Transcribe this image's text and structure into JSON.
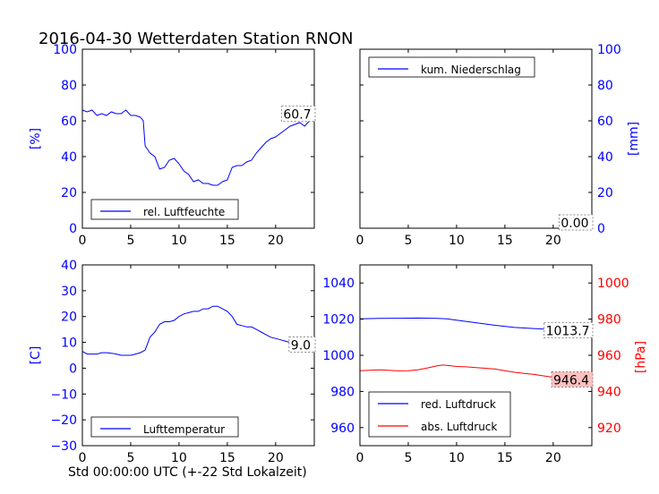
{
  "figure": {
    "title": "2016-04-30 Wetterdaten Station RNON",
    "xlabel": "Std 00:00:00 UTC (+-22 Std Lokalzeit)"
  },
  "colors": {
    "left_axis": "#0000ff",
    "right_axis_pressure": "#ff0000",
    "blue_series": "#0000ff",
    "red_series": "#ff0000",
    "value_box_fill": "#ffffff",
    "value_box_fill_red": "#ffc0c0"
  },
  "chart_data": [
    {
      "id": "humidity",
      "type": "line",
      "ylabel": "[%]",
      "xlim": [
        0,
        24
      ],
      "ylim": [
        0,
        100
      ],
      "x_ticks": [
        "0",
        "5",
        "10",
        "15",
        "20"
      ],
      "y_ticks": [
        "0",
        "20",
        "40",
        "60",
        "80",
        "100"
      ],
      "legend": {
        "placement": "lower-left",
        "entries": [
          "rel. Luftfeuchte"
        ]
      },
      "last_value_label": "60.7",
      "series": [
        {
          "name": "rel. Luftfeuchte",
          "color": "#0000ff",
          "x": [
            0,
            0.5,
            1,
            1.5,
            2,
            2.5,
            3,
            3.5,
            4,
            4.5,
            5,
            5.5,
            6,
            6.3,
            6.5,
            7,
            7.5,
            8,
            8.5,
            9,
            9.5,
            10,
            10.5,
            11,
            11.5,
            12,
            12.5,
            13,
            13.5,
            14,
            14.5,
            15,
            15.5,
            16,
            16.5,
            17,
            17.5,
            18,
            18.5,
            19,
            19.5,
            20,
            20.5,
            21,
            21.5,
            22,
            22.5,
            23,
            23.5,
            24
          ],
          "y": [
            66,
            65,
            66,
            63,
            64,
            63,
            65,
            64,
            64,
            66,
            63,
            63,
            62,
            60,
            46,
            42,
            40,
            33,
            34,
            38,
            39,
            36,
            32,
            30,
            26,
            27,
            25,
            25,
            24,
            24,
            26,
            27,
            34,
            35,
            35,
            37,
            38,
            42,
            45,
            48,
            50,
            51,
            53,
            55,
            57,
            58,
            59,
            57,
            60,
            60.7
          ]
        }
      ]
    },
    {
      "id": "precipitation",
      "type": "line",
      "ylabel": "[mm]",
      "xlim": [
        0,
        24
      ],
      "ylim": [
        0,
        100
      ],
      "x_ticks": [
        "0",
        "5",
        "10",
        "15",
        "20"
      ],
      "y_ticks": [
        "0",
        "20",
        "40",
        "60",
        "80",
        "100"
      ],
      "legend": {
        "placement": "upper-left",
        "entries": [
          "kum. Niederschlag"
        ]
      },
      "last_value_label": "0.00",
      "series": [
        {
          "name": "kum. Niederschlag",
          "color": "#0000ff",
          "x": [
            0,
            24
          ],
          "y": [
            0,
            0
          ]
        }
      ]
    },
    {
      "id": "temperature",
      "type": "line",
      "ylabel": "[C]",
      "xlim": [
        0,
        24
      ],
      "ylim": [
        -30,
        40
      ],
      "x_ticks": [
        "0",
        "5",
        "10",
        "15",
        "20"
      ],
      "y_ticks": [
        "−30",
        "−20",
        "−10",
        "0",
        "10",
        "20",
        "30",
        "40"
      ],
      "legend": {
        "placement": "lower-left",
        "entries": [
          "Lufttemperatur"
        ]
      },
      "last_value_label": "9.0",
      "series": [
        {
          "name": "Lufttemperatur",
          "color": "#0000ff",
          "x": [
            0,
            0.5,
            1,
            1.5,
            2,
            2.5,
            3,
            3.5,
            4,
            4.5,
            5,
            5.5,
            6,
            6.5,
            7,
            7.5,
            8,
            8.5,
            9,
            9.5,
            10,
            10.5,
            11,
            11.5,
            12,
            12.5,
            13,
            13.5,
            14,
            14.5,
            15,
            15.5,
            16,
            16.5,
            17,
            17.5,
            18,
            18.5,
            19,
            19.5,
            20,
            20.5,
            21,
            21.5,
            22,
            22.5,
            23,
            23.5,
            24
          ],
          "y": [
            6.5,
            5.5,
            5.5,
            5.5,
            6,
            6,
            5.8,
            5.5,
            5,
            5,
            5,
            5.5,
            6,
            7,
            12,
            14,
            17,
            18,
            18,
            18.5,
            20,
            21,
            21.5,
            22,
            22,
            23,
            23,
            24,
            24,
            23,
            22,
            20,
            17,
            16.5,
            16,
            16,
            15,
            14,
            13,
            12,
            11.5,
            11,
            10.5,
            10,
            10,
            9.5,
            9.5,
            9,
            9.0
          ]
        }
      ]
    },
    {
      "id": "pressure",
      "type": "line",
      "ylabel": "",
      "ylabel_right": "[hPa]",
      "xlim": [
        0,
        24
      ],
      "ylim": [
        950,
        1050
      ],
      "ylim_right": [
        910,
        1010
      ],
      "x_ticks": [
        "0",
        "5",
        "10",
        "15",
        "20"
      ],
      "y_ticks": [
        "960",
        "980",
        "1000",
        "1020",
        "1040"
      ],
      "y_ticks_right": [
        "920",
        "940",
        "960",
        "980",
        "1000"
      ],
      "legend": {
        "placement": "lower-left",
        "entries": [
          "red. Luftdruck",
          "abs. Luftdruck"
        ]
      },
      "last_value_label": "1013.7",
      "last_value_label_red": "946.4",
      "series": [
        {
          "name": "red. Luftdruck",
          "color": "#0000ff",
          "axis": "left",
          "x": [
            0,
            2,
            4,
            6,
            8,
            9,
            10,
            12,
            14,
            16,
            18,
            20,
            22,
            24
          ],
          "y": [
            1020.2,
            1020.4,
            1020.5,
            1020.6,
            1020.4,
            1020.2,
            1019.4,
            1018.0,
            1016.6,
            1015.4,
            1014.8,
            1014.2,
            1013.9,
            1013.7
          ]
        },
        {
          "name": "abs. Luftdruck",
          "color": "#ff0000",
          "axis": "right",
          "x": [
            0,
            2,
            4,
            5,
            6,
            7,
            8,
            8.5,
            9,
            10,
            11,
            12,
            13,
            14,
            15,
            16,
            17,
            18,
            19,
            20,
            21,
            22,
            23,
            24
          ],
          "y": [
            951.5,
            952.0,
            951.4,
            951.5,
            952.0,
            953.0,
            954.2,
            954.6,
            954.4,
            953.8,
            953.6,
            953.2,
            952.8,
            952.4,
            951.5,
            950.6,
            950.0,
            949.4,
            948.6,
            947.8,
            947.6,
            947.2,
            946.8,
            946.4
          ]
        }
      ]
    }
  ]
}
